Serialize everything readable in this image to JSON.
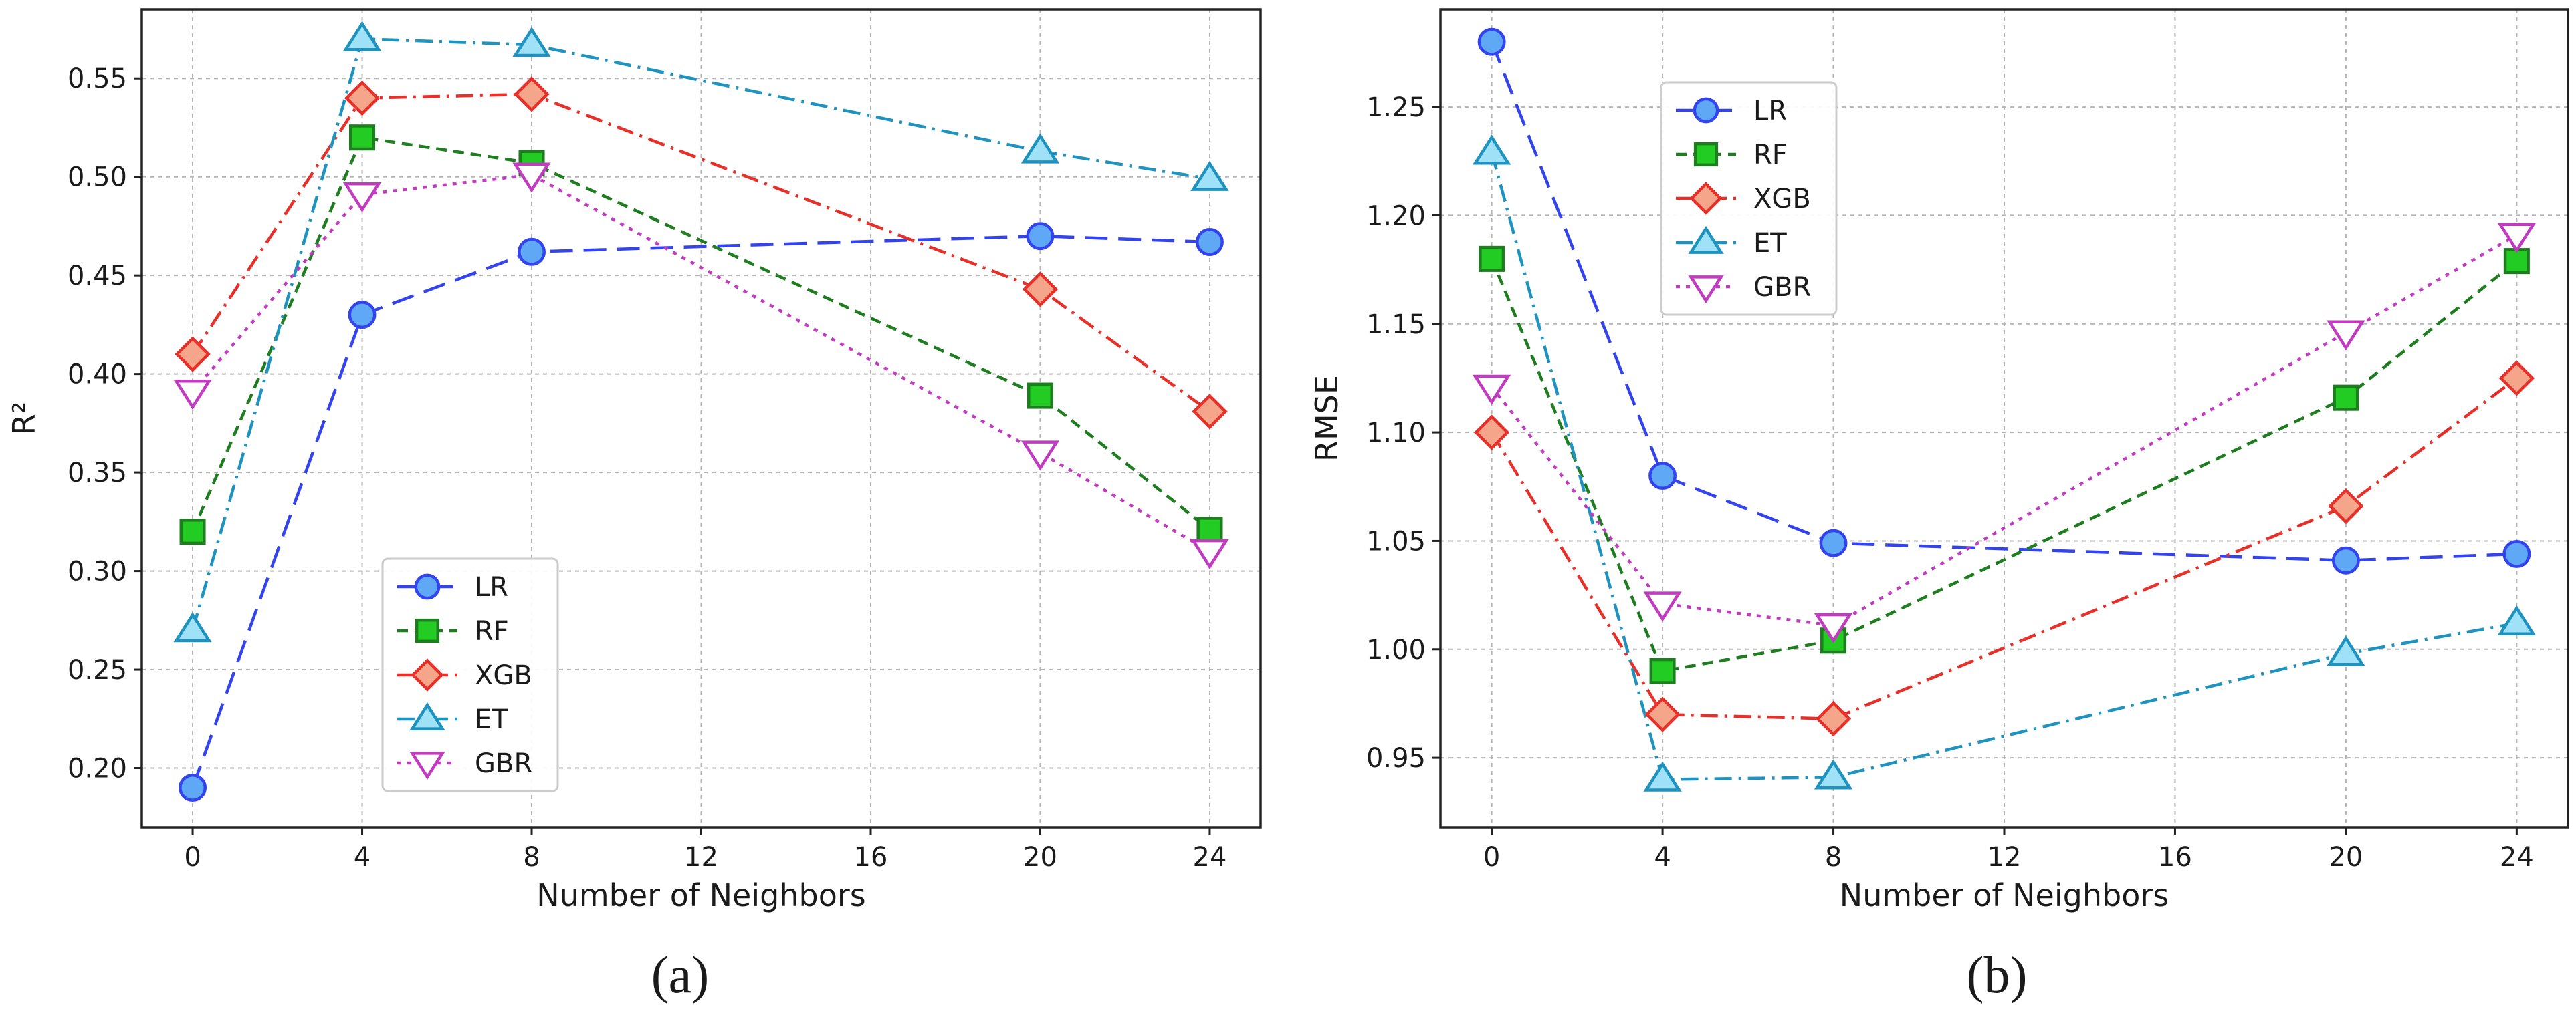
{
  "chart_data": [
    {
      "type": "line",
      "panel": "(a)",
      "xlabel": "Number of Neighbors",
      "ylabel": "R²",
      "x": [
        0,
        4,
        8,
        20,
        24
      ],
      "xticks": [
        0,
        4,
        8,
        12,
        16,
        20,
        24
      ],
      "xlim": [
        -1.2,
        25.2
      ],
      "ylim": [
        0.17,
        0.585
      ],
      "yticks": [
        0.2,
        0.25,
        0.3,
        0.35,
        0.4,
        0.45,
        0.5,
        0.55
      ],
      "grid": true,
      "legend_position": "lower-center",
      "series": [
        {
          "name": "LR",
          "values": [
            0.19,
            0.43,
            0.462,
            0.47,
            0.467
          ],
          "color": "#3344ee",
          "fill": "#5fa8f5",
          "marker": "circle",
          "dash": "long-dash"
        },
        {
          "name": "RF",
          "values": [
            0.32,
            0.52,
            0.507,
            0.389,
            0.321
          ],
          "color": "#1e7d1e",
          "fill": "#22cc22",
          "marker": "square",
          "dash": "dashed"
        },
        {
          "name": "XGB",
          "values": [
            0.41,
            0.54,
            0.542,
            0.443,
            0.381
          ],
          "color": "#e8302a",
          "fill": "#f5a58a",
          "marker": "diamond",
          "dash": "dash-dot"
        },
        {
          "name": "ET",
          "values": [
            0.27,
            0.57,
            0.567,
            0.513,
            0.499
          ],
          "color": "#1f93c0",
          "fill": "#9fe1f7",
          "marker": "triangle-up",
          "dash": "dash-dot"
        },
        {
          "name": "GBR",
          "values": [
            0.391,
            0.491,
            0.501,
            0.36,
            0.31
          ],
          "color": "#c23cc2",
          "fill": "#ffffff",
          "marker": "triangle-down",
          "dash": "dotted"
        }
      ]
    },
    {
      "type": "line",
      "panel": "(b)",
      "xlabel": "Number of Neighbors",
      "ylabel": "RMSE",
      "x": [
        0,
        4,
        8,
        20,
        24
      ],
      "xticks": [
        0,
        4,
        8,
        12,
        16,
        20,
        24
      ],
      "xlim": [
        -1.2,
        25.2
      ],
      "ylim": [
        0.918,
        1.295
      ],
      "yticks": [
        0.95,
        1.0,
        1.05,
        1.1,
        1.15,
        1.2,
        1.25
      ],
      "grid": true,
      "legend_position": "top-left",
      "series": [
        {
          "name": "LR",
          "values": [
            1.28,
            1.08,
            1.049,
            1.041,
            1.044
          ],
          "color": "#3344ee",
          "fill": "#5fa8f5",
          "marker": "circle",
          "dash": "long-dash"
        },
        {
          "name": "RF",
          "values": [
            1.18,
            0.99,
            1.004,
            1.116,
            1.179
          ],
          "color": "#1e7d1e",
          "fill": "#22cc22",
          "marker": "square",
          "dash": "dashed"
        },
        {
          "name": "XGB",
          "values": [
            1.1,
            0.97,
            0.968,
            1.066,
            1.125
          ],
          "color": "#e8302a",
          "fill": "#f5a58a",
          "marker": "diamond",
          "dash": "dash-dot"
        },
        {
          "name": "ET",
          "values": [
            1.229,
            0.94,
            0.941,
            0.998,
            1.012
          ],
          "color": "#1f93c0",
          "fill": "#9fe1f7",
          "marker": "triangle-up",
          "dash": "dash-dot"
        },
        {
          "name": "GBR",
          "values": [
            1.121,
            1.021,
            1.011,
            1.146,
            1.191
          ],
          "color": "#c23cc2",
          "fill": "#ffffff",
          "marker": "triangle-down",
          "dash": "dotted"
        }
      ]
    }
  ]
}
